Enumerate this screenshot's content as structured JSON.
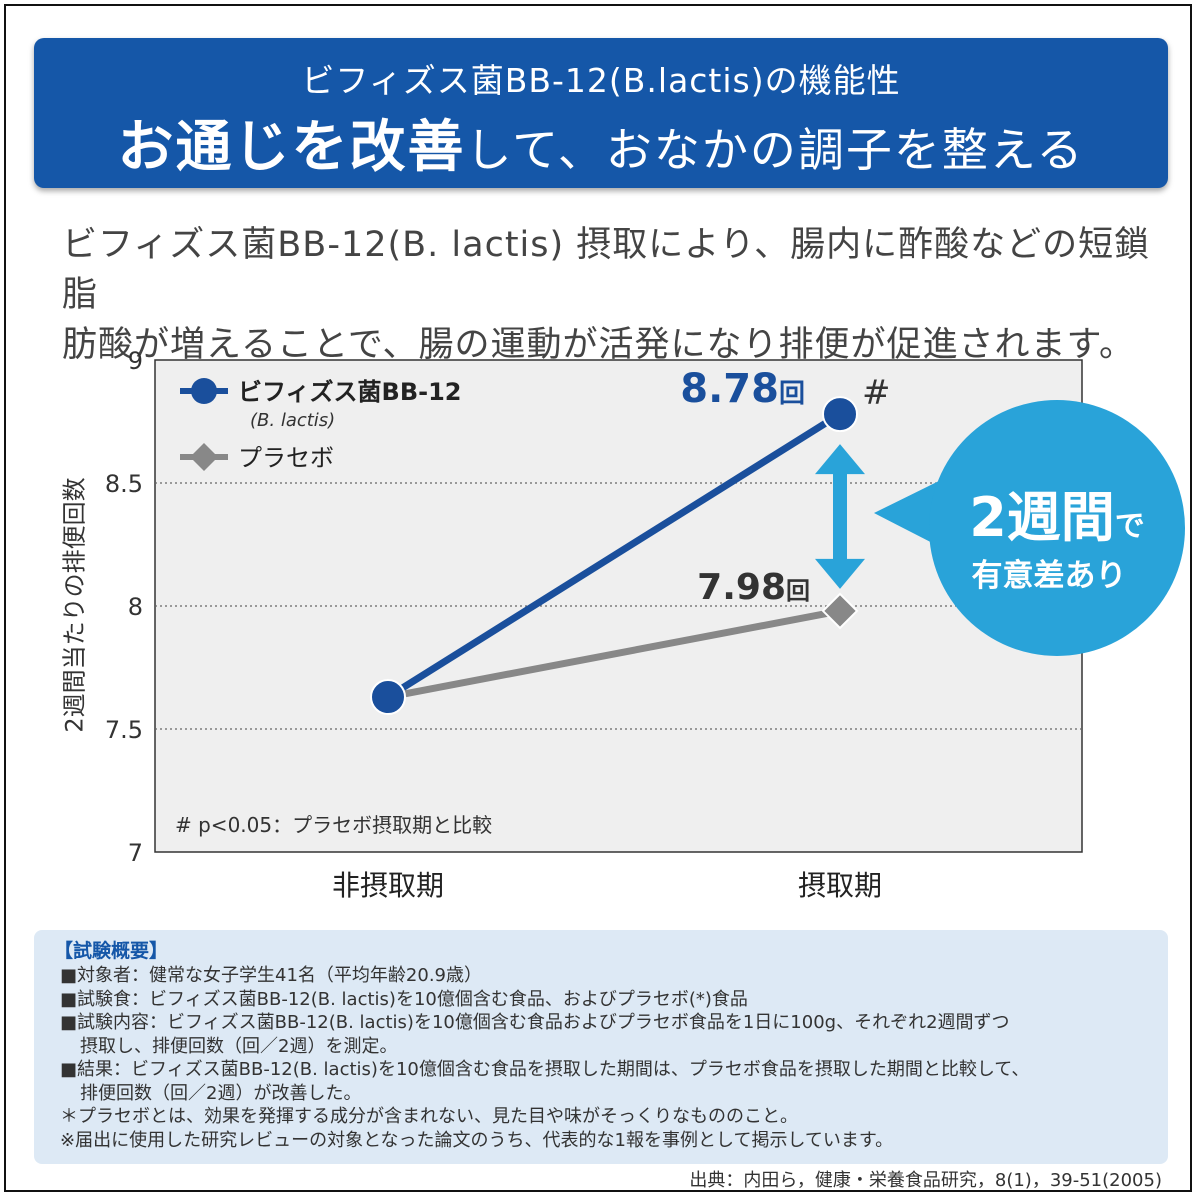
{
  "banner": {
    "line1": "ビフィズス菌BB-12(B.lactis)の機能性",
    "line2_bold": "お通じを改善",
    "line2_rest": "して、おなかの調子を整える"
  },
  "description": {
    "line1": "ビフィズス菌BB-12(B. lactis) 摂取により、腸内に酢酸などの短鎖脂",
    "line2": "肪酸が増えることで、腸の運動が活発になり排便が促進されます。"
  },
  "chart_data": {
    "type": "line",
    "categories": [
      "非摂取期",
      "摂取期"
    ],
    "ylabel": "2週間当たりの排便回数",
    "ylim": [
      7,
      9
    ],
    "yticks": [
      "7",
      "7.5",
      "8",
      "8.5",
      "9"
    ],
    "grid": "horizontal dotted",
    "legend_position": "top-left",
    "series": [
      {
        "name": "ビフィズス菌BB-12",
        "name_sub": "(B. lactis)",
        "values": [
          7.63,
          8.78
        ],
        "color": "#1a4f9c",
        "marker": "circle"
      },
      {
        "name": "プラセボ",
        "values": [
          7.63,
          7.98
        ],
        "color": "#888888",
        "marker": "diamond"
      }
    ],
    "data_labels": [
      {
        "series": 0,
        "index": 1,
        "value": "8.78",
        "unit": "回"
      },
      {
        "series": 1,
        "index": 1,
        "value": "7.98",
        "unit": "回"
      }
    ],
    "significance_mark": "#",
    "annotation": {
      "line1": "2週間",
      "line1_suffix": "で",
      "line2": "有意差あり",
      "color": "#29a3d9"
    },
    "footnote": "#  p<0.05：プラセボ摂取期と比較"
  },
  "info": {
    "heading": "【試験概要】",
    "rows": [
      "■対象者：健常な女子学生41名（平均年齢20.9歳）",
      "■試験食：ビフィズス菌BB-12(B. lactis)を10億個含む食品、およびプラセボ(*)食品",
      "■試験内容：ビフィズス菌BB-12(B. lactis)を10億個含む食品およびプラセボ食品を1日に100g、それぞれ2週間ずつ",
      "摂取し、排便回数（回／2週）を測定。",
      "■結果：ビフィズス菌BB-12(B. lactis)を10億個含む食品を摂取した期間は、プラセボ食品を摂取した期間と比較して、",
      "排便回数（回／2週）が改善した。",
      "＊プラセボとは、効果を発揮する成分が含まれない、見た目や味がそっくりなもののこと。",
      "※届出に使用した研究レビューの対象となった論文のうち、代表的な1報を事例として掲示しています。"
    ]
  },
  "source": "出典：内田ら，健康・栄養食品研究，8(1)，39-51(2005)"
}
